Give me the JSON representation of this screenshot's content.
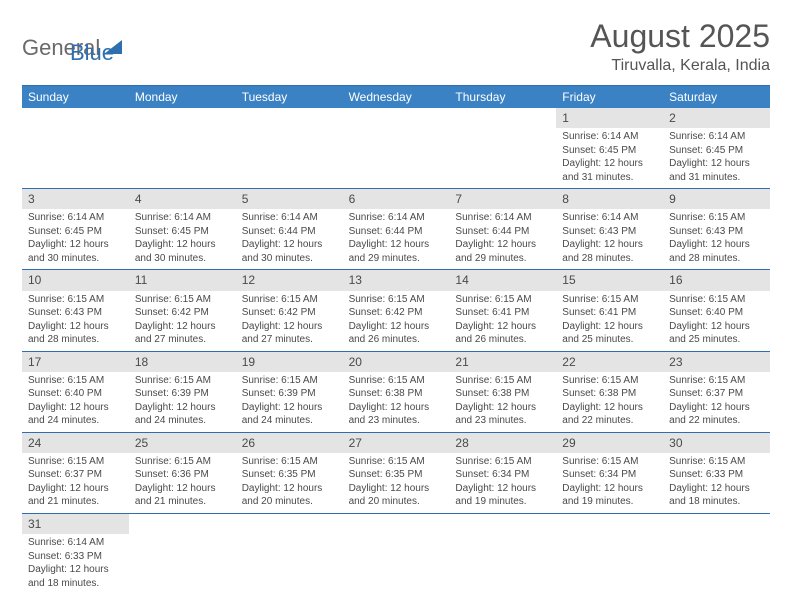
{
  "logo": {
    "text1": "General",
    "text2": "Blue"
  },
  "title": "August 2025",
  "location": "Tiruvalla, Kerala, India",
  "weekdays": [
    "Sunday",
    "Monday",
    "Tuesday",
    "Wednesday",
    "Thursday",
    "Friday",
    "Saturday"
  ],
  "colors": {
    "header_bg": "#3b82c4",
    "header_text": "#ffffff",
    "border": "#2f6fb0",
    "daynum_bg": "#e4e4e4",
    "text": "#4a4a4a"
  },
  "typography": {
    "title_fontsize": 32,
    "location_fontsize": 16,
    "weekday_fontsize": 12,
    "daynum_fontsize": 12,
    "body_fontsize": 10
  },
  "weeks": [
    [
      null,
      null,
      null,
      null,
      null,
      {
        "num": "1",
        "sunrise": "Sunrise: 6:14 AM",
        "sunset": "Sunset: 6:45 PM",
        "daylight": "Daylight: 12 hours and 31 minutes."
      },
      {
        "num": "2",
        "sunrise": "Sunrise: 6:14 AM",
        "sunset": "Sunset: 6:45 PM",
        "daylight": "Daylight: 12 hours and 31 minutes."
      }
    ],
    [
      {
        "num": "3",
        "sunrise": "Sunrise: 6:14 AM",
        "sunset": "Sunset: 6:45 PM",
        "daylight": "Daylight: 12 hours and 30 minutes."
      },
      {
        "num": "4",
        "sunrise": "Sunrise: 6:14 AM",
        "sunset": "Sunset: 6:45 PM",
        "daylight": "Daylight: 12 hours and 30 minutes."
      },
      {
        "num": "5",
        "sunrise": "Sunrise: 6:14 AM",
        "sunset": "Sunset: 6:44 PM",
        "daylight": "Daylight: 12 hours and 30 minutes."
      },
      {
        "num": "6",
        "sunrise": "Sunrise: 6:14 AM",
        "sunset": "Sunset: 6:44 PM",
        "daylight": "Daylight: 12 hours and 29 minutes."
      },
      {
        "num": "7",
        "sunrise": "Sunrise: 6:14 AM",
        "sunset": "Sunset: 6:44 PM",
        "daylight": "Daylight: 12 hours and 29 minutes."
      },
      {
        "num": "8",
        "sunrise": "Sunrise: 6:14 AM",
        "sunset": "Sunset: 6:43 PM",
        "daylight": "Daylight: 12 hours and 28 minutes."
      },
      {
        "num": "9",
        "sunrise": "Sunrise: 6:15 AM",
        "sunset": "Sunset: 6:43 PM",
        "daylight": "Daylight: 12 hours and 28 minutes."
      }
    ],
    [
      {
        "num": "10",
        "sunrise": "Sunrise: 6:15 AM",
        "sunset": "Sunset: 6:43 PM",
        "daylight": "Daylight: 12 hours and 28 minutes."
      },
      {
        "num": "11",
        "sunrise": "Sunrise: 6:15 AM",
        "sunset": "Sunset: 6:42 PM",
        "daylight": "Daylight: 12 hours and 27 minutes."
      },
      {
        "num": "12",
        "sunrise": "Sunrise: 6:15 AM",
        "sunset": "Sunset: 6:42 PM",
        "daylight": "Daylight: 12 hours and 27 minutes."
      },
      {
        "num": "13",
        "sunrise": "Sunrise: 6:15 AM",
        "sunset": "Sunset: 6:42 PM",
        "daylight": "Daylight: 12 hours and 26 minutes."
      },
      {
        "num": "14",
        "sunrise": "Sunrise: 6:15 AM",
        "sunset": "Sunset: 6:41 PM",
        "daylight": "Daylight: 12 hours and 26 minutes."
      },
      {
        "num": "15",
        "sunrise": "Sunrise: 6:15 AM",
        "sunset": "Sunset: 6:41 PM",
        "daylight": "Daylight: 12 hours and 25 minutes."
      },
      {
        "num": "16",
        "sunrise": "Sunrise: 6:15 AM",
        "sunset": "Sunset: 6:40 PM",
        "daylight": "Daylight: 12 hours and 25 minutes."
      }
    ],
    [
      {
        "num": "17",
        "sunrise": "Sunrise: 6:15 AM",
        "sunset": "Sunset: 6:40 PM",
        "daylight": "Daylight: 12 hours and 24 minutes."
      },
      {
        "num": "18",
        "sunrise": "Sunrise: 6:15 AM",
        "sunset": "Sunset: 6:39 PM",
        "daylight": "Daylight: 12 hours and 24 minutes."
      },
      {
        "num": "19",
        "sunrise": "Sunrise: 6:15 AM",
        "sunset": "Sunset: 6:39 PM",
        "daylight": "Daylight: 12 hours and 24 minutes."
      },
      {
        "num": "20",
        "sunrise": "Sunrise: 6:15 AM",
        "sunset": "Sunset: 6:38 PM",
        "daylight": "Daylight: 12 hours and 23 minutes."
      },
      {
        "num": "21",
        "sunrise": "Sunrise: 6:15 AM",
        "sunset": "Sunset: 6:38 PM",
        "daylight": "Daylight: 12 hours and 23 minutes."
      },
      {
        "num": "22",
        "sunrise": "Sunrise: 6:15 AM",
        "sunset": "Sunset: 6:38 PM",
        "daylight": "Daylight: 12 hours and 22 minutes."
      },
      {
        "num": "23",
        "sunrise": "Sunrise: 6:15 AM",
        "sunset": "Sunset: 6:37 PM",
        "daylight": "Daylight: 12 hours and 22 minutes."
      }
    ],
    [
      {
        "num": "24",
        "sunrise": "Sunrise: 6:15 AM",
        "sunset": "Sunset: 6:37 PM",
        "daylight": "Daylight: 12 hours and 21 minutes."
      },
      {
        "num": "25",
        "sunrise": "Sunrise: 6:15 AM",
        "sunset": "Sunset: 6:36 PM",
        "daylight": "Daylight: 12 hours and 21 minutes."
      },
      {
        "num": "26",
        "sunrise": "Sunrise: 6:15 AM",
        "sunset": "Sunset: 6:35 PM",
        "daylight": "Daylight: 12 hours and 20 minutes."
      },
      {
        "num": "27",
        "sunrise": "Sunrise: 6:15 AM",
        "sunset": "Sunset: 6:35 PM",
        "daylight": "Daylight: 12 hours and 20 minutes."
      },
      {
        "num": "28",
        "sunrise": "Sunrise: 6:15 AM",
        "sunset": "Sunset: 6:34 PM",
        "daylight": "Daylight: 12 hours and 19 minutes."
      },
      {
        "num": "29",
        "sunrise": "Sunrise: 6:15 AM",
        "sunset": "Sunset: 6:34 PM",
        "daylight": "Daylight: 12 hours and 19 minutes."
      },
      {
        "num": "30",
        "sunrise": "Sunrise: 6:15 AM",
        "sunset": "Sunset: 6:33 PM",
        "daylight": "Daylight: 12 hours and 18 minutes."
      }
    ],
    [
      {
        "num": "31",
        "sunrise": "Sunrise: 6:14 AM",
        "sunset": "Sunset: 6:33 PM",
        "daylight": "Daylight: 12 hours and 18 minutes."
      },
      null,
      null,
      null,
      null,
      null,
      null
    ]
  ]
}
